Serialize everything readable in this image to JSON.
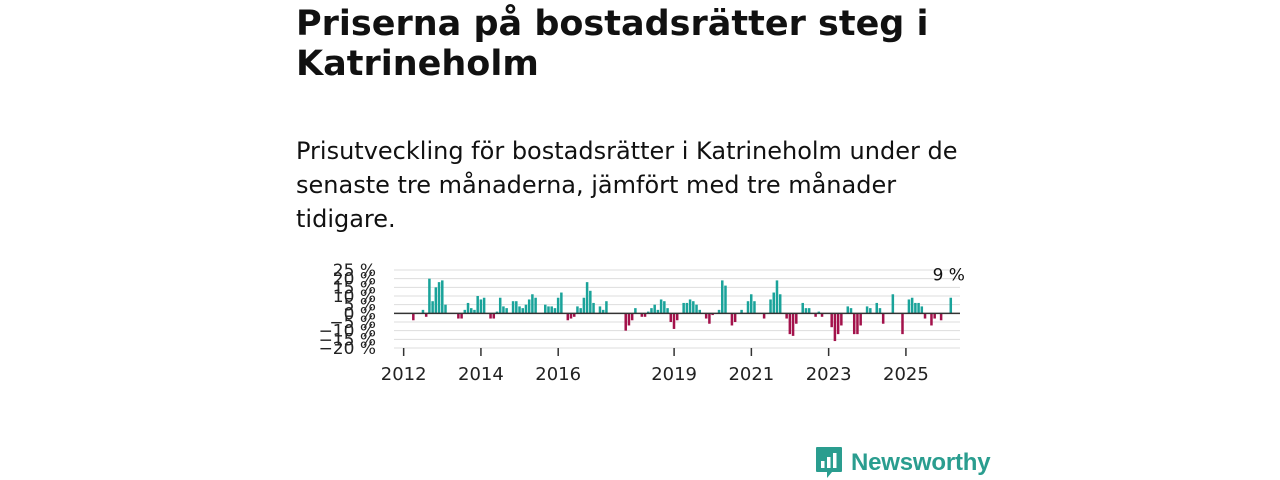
{
  "title": "Priserna på bostadsrätter steg i Katrineholm",
  "subtitle": "Prisutveckling för bostadsrätter i Katrineholm under de senaste tre månaderna, jämfört med tre månader tidigare.",
  "brand": {
    "name": "Newsworthy",
    "icon": "newsworthy-logo-icon",
    "color": "#2a9d8f"
  },
  "colors": {
    "positive": "#1aa39a",
    "negative": "#a3124b",
    "grid": "#dddddd",
    "zero": "#333333"
  },
  "chart_data": {
    "type": "bar",
    "title": "",
    "xlabel": "",
    "ylabel": "",
    "ylim": [
      -20,
      25
    ],
    "xlim": [
      2011.75,
      2026.4
    ],
    "y_ticks": [
      25,
      20,
      15,
      10,
      5,
      0,
      -5,
      -10,
      -15,
      -20
    ],
    "y_tick_labels": [
      "25 %",
      "20 %",
      "15 %",
      "10 %",
      "5 %",
      "0 %",
      "−5 %",
      "−10 %",
      "−15 %",
      "−20 %"
    ],
    "x_ticks": [
      2012,
      2014,
      2016,
      2019,
      2021,
      2023,
      2025
    ],
    "x_tick_labels": [
      "2012",
      "2014",
      "2016",
      "2019",
      "2021",
      "2023",
      "2025"
    ],
    "start_year": 2012.25,
    "step": 0.0833,
    "values": [
      -4,
      0,
      0,
      2,
      -2,
      20,
      7,
      15,
      18,
      19,
      5,
      0,
      0,
      0,
      -3,
      -3,
      2,
      6,
      3,
      2,
      10,
      8,
      9,
      0,
      -3,
      -3,
      1,
      9,
      4,
      3,
      0,
      7,
      7,
      4,
      3,
      5,
      8,
      11,
      9,
      0,
      0,
      5,
      4,
      4,
      3,
      9,
      12,
      0,
      -4,
      -3,
      -2,
      4,
      3,
      9,
      18,
      13,
      6,
      0,
      4,
      2,
      7,
      0,
      0,
      0,
      0,
      0,
      -10,
      -7,
      -4,
      3,
      0,
      -2,
      -2,
      1,
      3,
      5,
      2,
      8,
      7,
      3,
      -5,
      -9,
      -4,
      0,
      6,
      6,
      8,
      7,
      5,
      2,
      0,
      -3,
      -6,
      -1,
      0,
      2,
      19,
      16,
      0,
      -7,
      -5,
      0,
      2,
      0,
      7,
      11,
      7,
      0,
      0,
      -3,
      0,
      8,
      12,
      19,
      11,
      0,
      -3,
      -12,
      -13,
      -6,
      0,
      6,
      3,
      3,
      0,
      -2,
      1,
      -2,
      0,
      0,
      -8,
      -16,
      -12,
      -7,
      0,
      4,
      3,
      -12,
      -12,
      -7,
      0,
      4,
      3,
      0,
      6,
      3,
      -6,
      0,
      0,
      11,
      0,
      0,
      -12,
      0,
      8,
      9,
      6,
      6,
      4,
      -3,
      0,
      -7,
      -3,
      0,
      -4,
      0,
      0,
      9
    ],
    "end_label": "9 %"
  }
}
